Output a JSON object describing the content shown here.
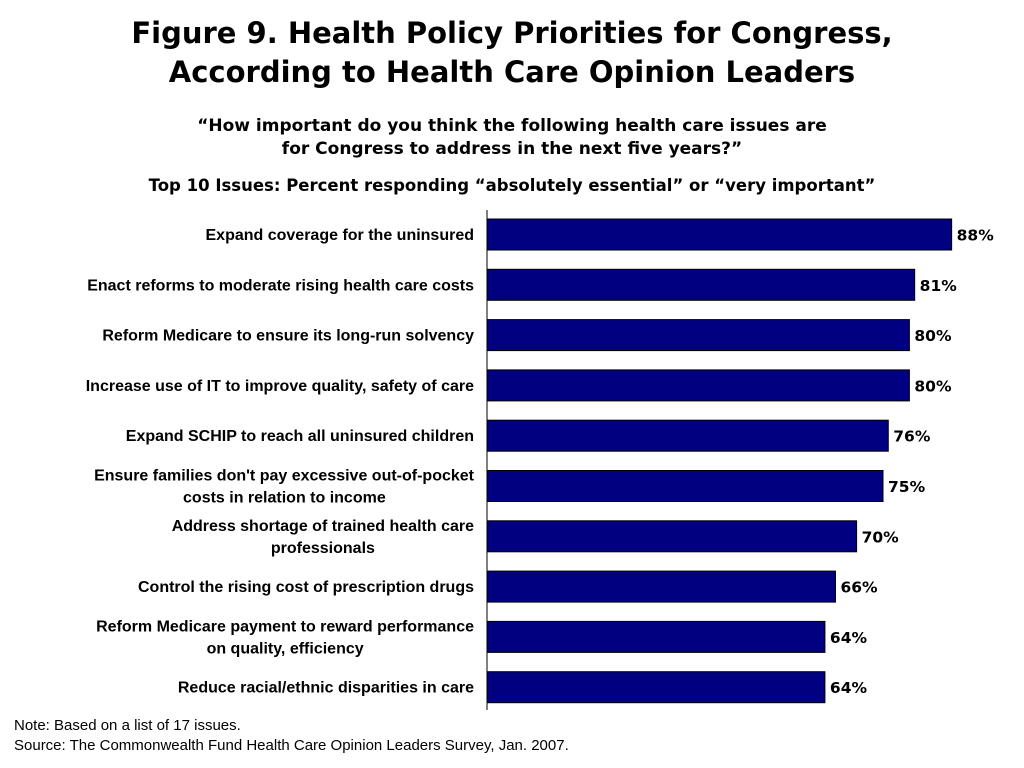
{
  "title_lines": [
    "Figure 9. Health Policy Priorities for Congress,",
    "According to Health Care Opinion Leaders"
  ],
  "question_lines": [
    "“How important do you think the following health care issues are",
    "for Congress to address in the next five years?”"
  ],
  "subtitle": "Top 10 Issues: Percent responding “absolutely essential” or “very important”",
  "chart_data": {
    "type": "bar",
    "orientation": "horizontal",
    "categories": [
      [
        "Expand coverage for the uninsured"
      ],
      [
        "Enact reforms to moderate rising health care costs"
      ],
      [
        "Reform Medicare to ensure its long-run solvency"
      ],
      [
        "Increase use of IT to improve quality, safety of care"
      ],
      [
        "Expand SCHIP to reach all uninsured children"
      ],
      [
        "Ensure families don't pay excessive out-of-pocket",
        "costs in relation to income"
      ],
      [
        "Address shortage of trained health care",
        "professionals"
      ],
      [
        "Control the rising cost of prescription drugs"
      ],
      [
        "Reform Medicare payment to reward performance",
        "on quality, efficiency"
      ],
      [
        "Reduce racial/ethnic disparities in care"
      ]
    ],
    "values": [
      88,
      81,
      80,
      80,
      76,
      75,
      70,
      66,
      64,
      64
    ],
    "value_labels": [
      "88%",
      "81%",
      "80%",
      "80%",
      "76%",
      "75%",
      "70%",
      "66%",
      "64%",
      "64%"
    ],
    "xlim": [
      0,
      100
    ],
    "bar_color": "#000080",
    "grid": false,
    "legend": "none"
  },
  "notes": [
    "Note: Based on a list of 17 issues.",
    "Source: The Commonwealth Fund Health Care Opinion Leaders Survey, Jan. 2007."
  ]
}
